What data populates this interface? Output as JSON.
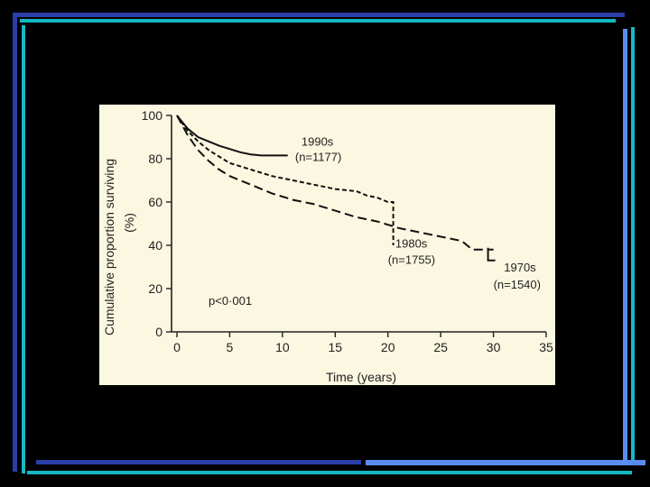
{
  "slide": {
    "background": "#000000",
    "frame_colors": [
      "#2b3fa8",
      "#16b8c4",
      "#5a8cf0"
    ]
  },
  "chart_data": {
    "type": "line",
    "title": "",
    "xlabel": "Time (years)",
    "ylabel_line1": "Cumulative proportion surviving",
    "ylabel_line2": "(%)",
    "xlim": [
      0,
      35
    ],
    "ylim": [
      0,
      100
    ],
    "xticks": [
      0,
      5,
      10,
      15,
      20,
      25,
      30,
      35
    ],
    "yticks": [
      0,
      20,
      40,
      60,
      80,
      100
    ],
    "grid": false,
    "annotation": "p<0·001",
    "series": [
      {
        "name": "1990s",
        "n_label": "(n=1177)",
        "style": "solid",
        "x": [
          0,
          0.5,
          1,
          2,
          3,
          4,
          5,
          6,
          7,
          8,
          9,
          10,
          10.5
        ],
        "y": [
          100,
          97,
          94,
          90,
          88,
          86,
          84.5,
          83,
          82,
          81.5,
          81.5,
          81.5,
          81.5
        ]
      },
      {
        "name": "1980s",
        "n_label": "(n=1755)",
        "style": "short-dash",
        "x": [
          0,
          1,
          2,
          3,
          4,
          5,
          7,
          9,
          11,
          13,
          15,
          17,
          18,
          19,
          20,
          20.5,
          20.5
        ],
        "y": [
          100,
          93,
          88,
          84,
          81,
          78,
          75,
          72,
          70,
          68,
          66,
          65,
          63,
          62,
          60,
          60,
          40
        ]
      },
      {
        "name": "1970s",
        "n_label": "(n=1540)",
        "style": "long-dash",
        "x": [
          0,
          1,
          2,
          3,
          4,
          5,
          7,
          9,
          11,
          13,
          15,
          17,
          19,
          21,
          23,
          25,
          27,
          28,
          30
        ],
        "y": [
          100,
          91,
          84,
          79,
          75,
          72,
          68,
          64,
          61,
          59,
          56,
          53,
          51,
          48,
          46,
          44,
          42,
          38,
          38
        ]
      }
    ]
  }
}
